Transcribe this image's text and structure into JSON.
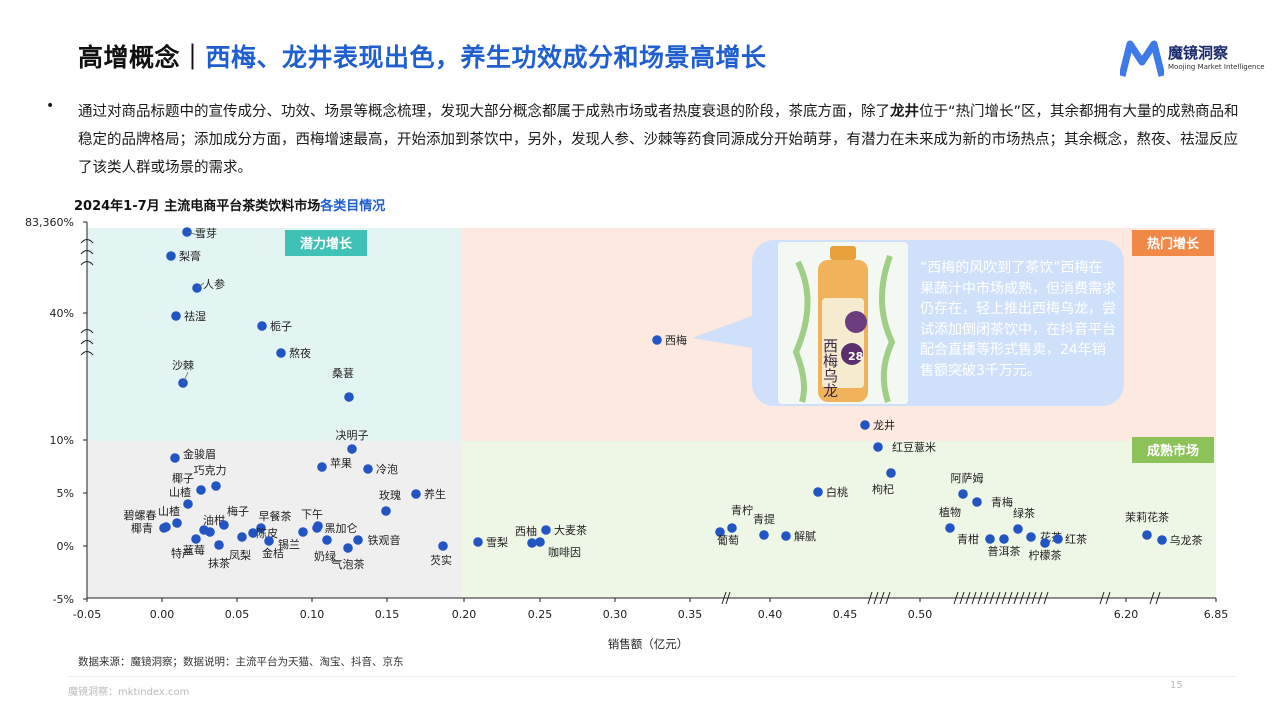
{
  "header": {
    "title_prefix": "高增概念｜",
    "title_highlight": "西梅、龙井表现出色，养生功效成分和场景高增长",
    "logo_cn": "魔镜洞察",
    "logo_en": "Moojing Market Intelligence"
  },
  "intro": {
    "bullet": "•",
    "part1": "通过对商品标题中的宣传成分、功效、场景等概念梳理，发现大部分概念都属于成熟市场或者热度衰退的阶段，茶底方面，除了",
    "bold": "龙井",
    "part2": "位于“热门增长”区，其余都拥有大量的成熟商品和稳定的品牌格局；添加成分方面，西梅增速最高，开始添加到茶饮中，另外，发现人参、沙棘等药食同源成分开始萌芽，有潜力在未来成为新的市场热点；其余概念，熬夜、祛湿反应了该类人群或场景的需求。"
  },
  "chart_title": {
    "prefix": "2024年1-7月 主流电商平台茶类饮料市场",
    "highlight": "各类目情况"
  },
  "chart_data": {
    "type": "scatter",
    "xlabel": "销售额（亿元）",
    "ylabel": "",
    "x_ticks": [
      "-0.05",
      "0.00",
      "0.05",
      "0.10",
      "0.15",
      "0.20",
      "0.25",
      "0.30",
      "0.35",
      "0.40",
      "0.45",
      "0.50",
      "6.20",
      "6.85"
    ],
    "y_ticks": [
      "83,360%",
      "40%",
      "10%",
      "5%",
      "0%",
      "-5%"
    ],
    "quadrants": {
      "top_left": "潜力增长",
      "top_right": "热门增长",
      "bottom_right": "成熟市场"
    },
    "colors": {
      "point": "#2255c4",
      "potential_bg": "#e3f5f3",
      "potential_label": "#40c1b6",
      "hot_bg": "#fde9df",
      "hot_label": "#f08848",
      "mature_bg": "#eef6e6",
      "mature_label": "#8cc258",
      "declining_bg": "#efefef"
    },
    "points": [
      {
        "label": "雪芽",
        "x": 0.02,
        "y": 83360
      },
      {
        "label": "梨膏",
        "x": 0.01,
        "y": 70
      },
      {
        "label": "人参",
        "x": 0.03,
        "y": 55
      },
      {
        "label": "祛湿",
        "x": 0.01,
        "y": 40
      },
      {
        "label": "栀子",
        "x": 0.07,
        "y": 38
      },
      {
        "label": "熬夜",
        "x": 0.08,
        "y": 30
      },
      {
        "label": "沙棘",
        "x": 0.01,
        "y": 25
      },
      {
        "label": "桑葚",
        "x": 0.12,
        "y": 22
      },
      {
        "label": "决明子",
        "x": 0.13,
        "y": 9.2
      },
      {
        "label": "金骏眉",
        "x": 0.01,
        "y": 8.2
      },
      {
        "label": "苹果",
        "x": 0.11,
        "y": 7.4
      },
      {
        "label": "冷泡",
        "x": 0.14,
        "y": 7.2
      },
      {
        "label": "巧克力",
        "x": 0.04,
        "y": 6.0
      },
      {
        "label": "椰子",
        "x": 0.03,
        "y": 5.2
      },
      {
        "label": "养生",
        "x": 0.17,
        "y": 5.0
      },
      {
        "label": "山楂",
        "x": 0.02,
        "y": 4.2
      },
      {
        "label": "玫瑰",
        "x": 0.15,
        "y": 3.4
      },
      {
        "label": "碧螺春",
        "x": 0.01,
        "y": 2.8
      },
      {
        "label": "油柑",
        "x": 0.03,
        "y": 2.6
      },
      {
        "label": "梅子",
        "x": 0.05,
        "y": 2.8
      },
      {
        "label": "早餐茶",
        "x": 0.07,
        "y": 2.2
      },
      {
        "label": "下午",
        "x": 0.1,
        "y": 2.0
      },
      {
        "label": "椰青",
        "x": 0.0,
        "y": 1.8
      },
      {
        "label": "黑加仑",
        "x": 0.11,
        "y": 1.6
      },
      {
        "label": "陈皮",
        "x": 0.06,
        "y": 1.2
      },
      {
        "label": "山楂",
        "x": 0.01,
        "y": 1.0
      },
      {
        "label": "铁观音",
        "x": 0.13,
        "y": 0.6
      },
      {
        "label": "锡兰",
        "x": 0.08,
        "y": 0.5
      },
      {
        "label": "特产",
        "x": 0.02,
        "y": 0.5
      },
      {
        "label": "金桔",
        "x": 0.07,
        "y": 0.4
      },
      {
        "label": "奶绿",
        "x": 0.09,
        "y": 0.2
      },
      {
        "label": "凤梨",
        "x": 0.05,
        "y": 0.3
      },
      {
        "label": "蓝莓",
        "x": 0.03,
        "y": 0.2
      },
      {
        "label": "抹茶",
        "x": 0.04,
        "y": 0.1
      },
      {
        "label": "气泡茶",
        "x": 0.12,
        "y": -0.2
      },
      {
        "label": "芡实",
        "x": 0.19,
        "y": 0.2
      },
      {
        "label": "雪梨",
        "x": 0.21,
        "y": 0.4
      },
      {
        "label": "西柚",
        "x": 0.25,
        "y": 0.5
      },
      {
        "label": "大麦茶",
        "x": 0.26,
        "y": 1.5
      },
      {
        "label": "咖啡因",
        "x": 0.25,
        "y": 0.2
      },
      {
        "label": "西梅",
        "x": 0.33,
        "y": 28
      },
      {
        "label": "青柠",
        "x": 0.38,
        "y": 1.2
      },
      {
        "label": "葡萄",
        "x": 0.39,
        "y": 1.6
      },
      {
        "label": "青提",
        "x": 0.43,
        "y": 1.0
      },
      {
        "label": "解腻",
        "x": 0.45,
        "y": 0.9
      },
      {
        "label": "白桃",
        "x": 0.46,
        "y": 5.0
      },
      {
        "label": "龙井",
        "x": 0.48,
        "y": 11.0
      },
      {
        "label": "红豆薏米",
        "x": 0.49,
        "y": 9.4
      },
      {
        "label": "枸杞",
        "x": 0.5,
        "y": 6.8
      },
      {
        "label": "阿萨姆",
        "x": 0.53,
        "y": 4.8
      },
      {
        "label": "青梅",
        "x": 0.54,
        "y": 4.0
      },
      {
        "label": "植物",
        "x": 0.53,
        "y": 1.8
      },
      {
        "label": "绿茶",
        "x": 0.55,
        "y": 1.6
      },
      {
        "label": "青柑",
        "x": 0.54,
        "y": 0.8
      },
      {
        "label": "普洱茶",
        "x": 0.56,
        "y": 0.7
      },
      {
        "label": "花茶",
        "x": 0.57,
        "y": 0.8
      },
      {
        "label": "柠檬茶",
        "x": 0.58,
        "y": 0.3
      },
      {
        "label": "红茶",
        "x": 0.59,
        "y": 0.7
      },
      {
        "label": "茉莉花茶",
        "x": 6.3,
        "y": 1.0
      },
      {
        "label": "乌龙茶",
        "x": 6.5,
        "y": 0.5
      }
    ]
  },
  "callout": {
    "text": "“西梅的风吹到了茶饮”西梅在果蔬汁中市场成熟，但消费需求仍存在，轻上推出西梅乌龙，尝试添加倒闭茶饮中，在抖音平台配合直播等形式售卖，24年销售额突破3千万元。",
    "product_text": "西梅乌龙",
    "product_num": "28"
  },
  "footer": {
    "source": "数据来源：魔镜洞察；数据说明：主流平台为天猫、淘宝、抖音、京东",
    "site": "魔镜洞察：mktindex.com",
    "page": "15"
  }
}
